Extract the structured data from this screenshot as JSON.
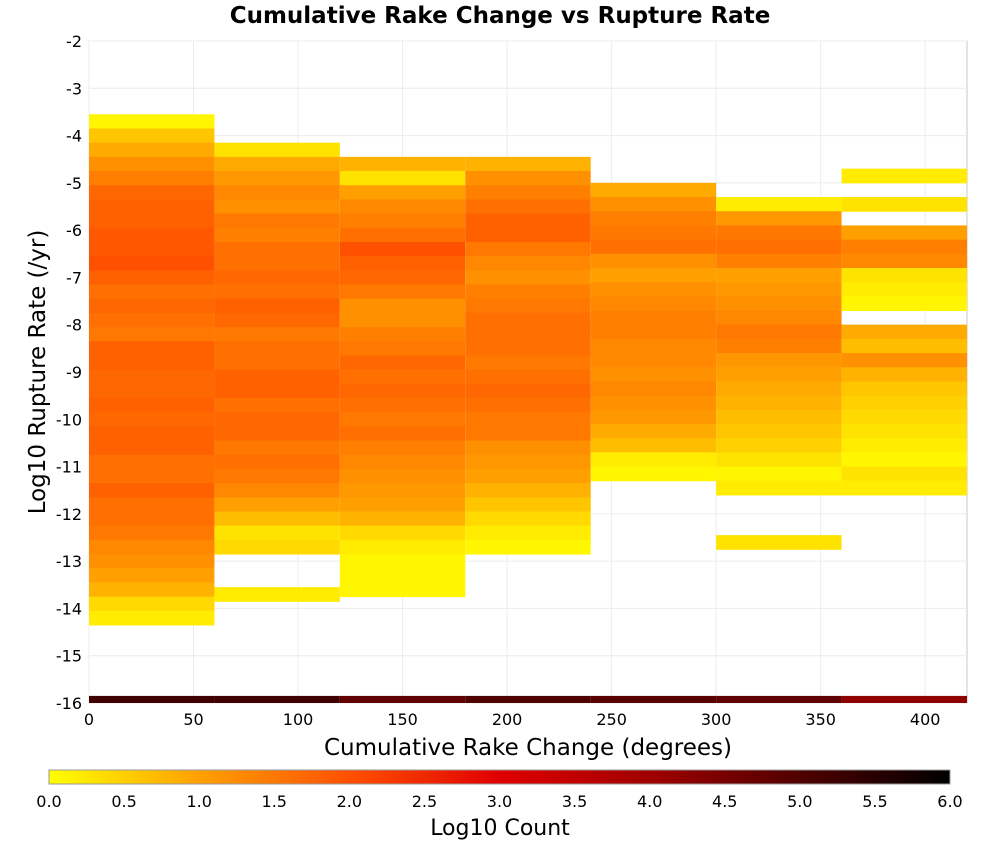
{
  "chart_data": {
    "type": "heatmap",
    "title": "Cumulative Rake Change vs Rupture Rate",
    "xlabel": "Cumulative Rake Change (degrees)",
    "ylabel": "Log10 Rupture Rate (/yr)",
    "xlim": [
      0,
      420
    ],
    "ylim": [
      -16,
      -2
    ],
    "x_ticks": [
      0,
      50,
      100,
      150,
      200,
      250,
      300,
      350,
      400
    ],
    "y_ticks": [
      -16,
      -15,
      -14,
      -13,
      -12,
      -11,
      -10,
      -9,
      -8,
      -7,
      -6,
      -5,
      -4,
      -3,
      -2
    ],
    "x_bin_width": 60,
    "y_bin_width": 0.3,
    "grid": true,
    "colorbar": {
      "label": "Log10 Count",
      "range": [
        0,
        6
      ],
      "ticks": [
        "0.0",
        "0.5",
        "1.0",
        "1.5",
        "2.0",
        "2.5",
        "3.0",
        "3.5",
        "4.0",
        "4.5",
        "5.0",
        "5.5",
        "6.0"
      ],
      "colors": [
        "#ffff00",
        "#ffa000",
        "#ff5000",
        "#e00000",
        "#a00000",
        "#500000",
        "#000000"
      ]
    },
    "columns": [
      {
        "x": 30,
        "y_top": -3.55,
        "values": [
          0.1,
          0.6,
          0.9,
          1.2,
          1.4,
          1.7,
          1.8,
          1.8,
          1.9,
          1.9,
          2.0,
          1.8,
          1.6,
          1.7,
          1.6,
          1.5,
          1.8,
          1.8,
          1.7,
          1.7,
          1.8,
          1.7,
          1.8,
          1.8,
          1.6,
          1.6,
          1.8,
          1.6,
          1.6,
          1.5,
          1.3,
          1.2,
          1.0,
          0.8,
          0.4,
          0.2
        ]
      },
      {
        "x": 90,
        "y_top": -4.15,
        "values": [
          0.3,
          0.9,
          1.1,
          1.3,
          1.2,
          1.5,
          1.4,
          1.6,
          1.6,
          1.7,
          1.6,
          1.8,
          1.7,
          1.5,
          1.6,
          1.6,
          1.8,
          1.8,
          1.6,
          1.7,
          1.7,
          1.5,
          1.6,
          1.5,
          1.3,
          1.0,
          0.7,
          0.3,
          0.4
        ],
        "extra": [
          {
            "y_top": -13.55,
            "values": [
              0.2
            ]
          }
        ]
      },
      {
        "x": 150,
        "y_top": -4.45,
        "values": [
          0.8,
          0.3,
          1.0,
          1.3,
          1.4,
          1.6,
          2.0,
          1.8,
          1.7,
          1.5,
          1.2,
          1.2,
          1.4,
          1.5,
          1.7,
          1.6,
          1.7,
          1.6,
          1.5,
          1.6,
          1.4,
          1.3,
          1.2,
          1.1,
          1.0,
          0.8,
          0.4,
          0.2,
          0.1,
          0.1,
          0.1
        ]
      },
      {
        "x": 210,
        "y_top": -4.45,
        "values": [
          0.8,
          1.2,
          1.4,
          1.6,
          1.8,
          1.8,
          1.5,
          1.3,
          1.2,
          1.4,
          1.5,
          1.6,
          1.6,
          1.6,
          1.5,
          1.6,
          1.7,
          1.6,
          1.5,
          1.5,
          1.2,
          1.1,
          1.0,
          0.8,
          0.6,
          0.4,
          0.2,
          0.1
        ]
      },
      {
        "x": 270,
        "y_top": -5.0,
        "values": [
          0.9,
          1.2,
          1.4,
          1.5,
          1.6,
          1.2,
          1.0,
          1.2,
          1.3,
          1.4,
          1.4,
          1.3,
          1.3,
          1.2,
          1.3,
          1.2,
          1.1,
          0.9,
          0.7,
          0.2,
          0.1
        ]
      },
      {
        "x": 330,
        "y_top": -5.3,
        "values": [
          0.2,
          1.1,
          1.5,
          1.6,
          1.4,
          1.0,
          1.1,
          1.2,
          1.3,
          1.5,
          1.4,
          1.1,
          1.0,
          0.9,
          0.8,
          0.7,
          0.6,
          0.5,
          0.3,
          0.1,
          0.2
        ],
        "extra": [
          {
            "y_top": -12.45,
            "values": [
              0.3
            ]
          }
        ]
      },
      {
        "x": 390,
        "y_top": -4.7,
        "values": [
          0.2,
          null,
          0.3,
          null,
          1.0,
          1.4,
          1.3,
          0.3,
          0.2,
          0.1,
          null,
          0.9,
          0.7,
          1.2,
          0.8,
          0.6,
          0.5,
          0.4,
          0.3,
          0.2,
          0.1,
          0.3,
          0.2
        ]
      }
    ],
    "bottom_band": {
      "y_top": -15.85,
      "values": [
        5.2,
        5.2,
        4.8,
        5.0,
        4.9,
        4.8,
        4.2
      ]
    }
  }
}
